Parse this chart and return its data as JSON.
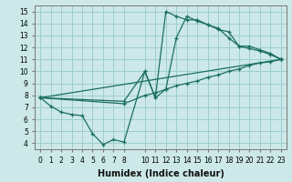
{
  "xlabel": "Humidex (Indice chaleur)",
  "xlim": [
    -0.5,
    23.5
  ],
  "ylim": [
    3.5,
    15.5
  ],
  "xticks": [
    0,
    1,
    2,
    3,
    4,
    5,
    6,
    7,
    8,
    10,
    11,
    12,
    13,
    14,
    15,
    16,
    17,
    18,
    19,
    20,
    21,
    22,
    23
  ],
  "yticks": [
    4,
    5,
    6,
    7,
    8,
    9,
    10,
    11,
    12,
    13,
    14,
    15
  ],
  "bg_color": "#cce8e8",
  "grid_color": "#9ecece",
  "line_color": "#1a6e60",
  "line1_x": [
    0,
    1,
    2,
    3,
    4,
    5,
    6,
    7,
    8,
    10,
    11,
    12,
    13,
    14,
    15,
    16,
    17,
    18,
    19,
    20,
    21,
    22,
    23
  ],
  "line1_y": [
    7.8,
    7.1,
    6.6,
    6.4,
    6.3,
    4.8,
    3.9,
    4.3,
    4.1,
    10.0,
    7.8,
    15.0,
    14.6,
    14.3,
    14.3,
    13.9,
    13.6,
    12.8,
    12.1,
    11.9,
    11.7,
    11.4,
    11.0
  ],
  "line2_x": [
    0,
    8,
    10,
    11,
    12,
    13,
    14,
    15,
    16,
    17,
    18,
    19,
    20,
    21,
    22,
    23
  ],
  "line2_y": [
    7.8,
    7.5,
    10.0,
    7.8,
    8.5,
    12.8,
    14.6,
    14.2,
    13.9,
    13.5,
    13.3,
    12.1,
    12.1,
    11.8,
    11.5,
    11.0
  ],
  "line3_x": [
    0,
    23
  ],
  "line3_y": [
    7.8,
    11.0
  ],
  "line4_x": [
    0,
    8,
    10,
    11,
    12,
    13,
    14,
    15,
    16,
    17,
    18,
    19,
    20,
    21,
    22,
    23
  ],
  "line4_y": [
    7.8,
    7.3,
    8.0,
    8.2,
    8.5,
    8.8,
    9.0,
    9.2,
    9.5,
    9.7,
    10.0,
    10.2,
    10.5,
    10.7,
    10.8,
    11.0
  ]
}
